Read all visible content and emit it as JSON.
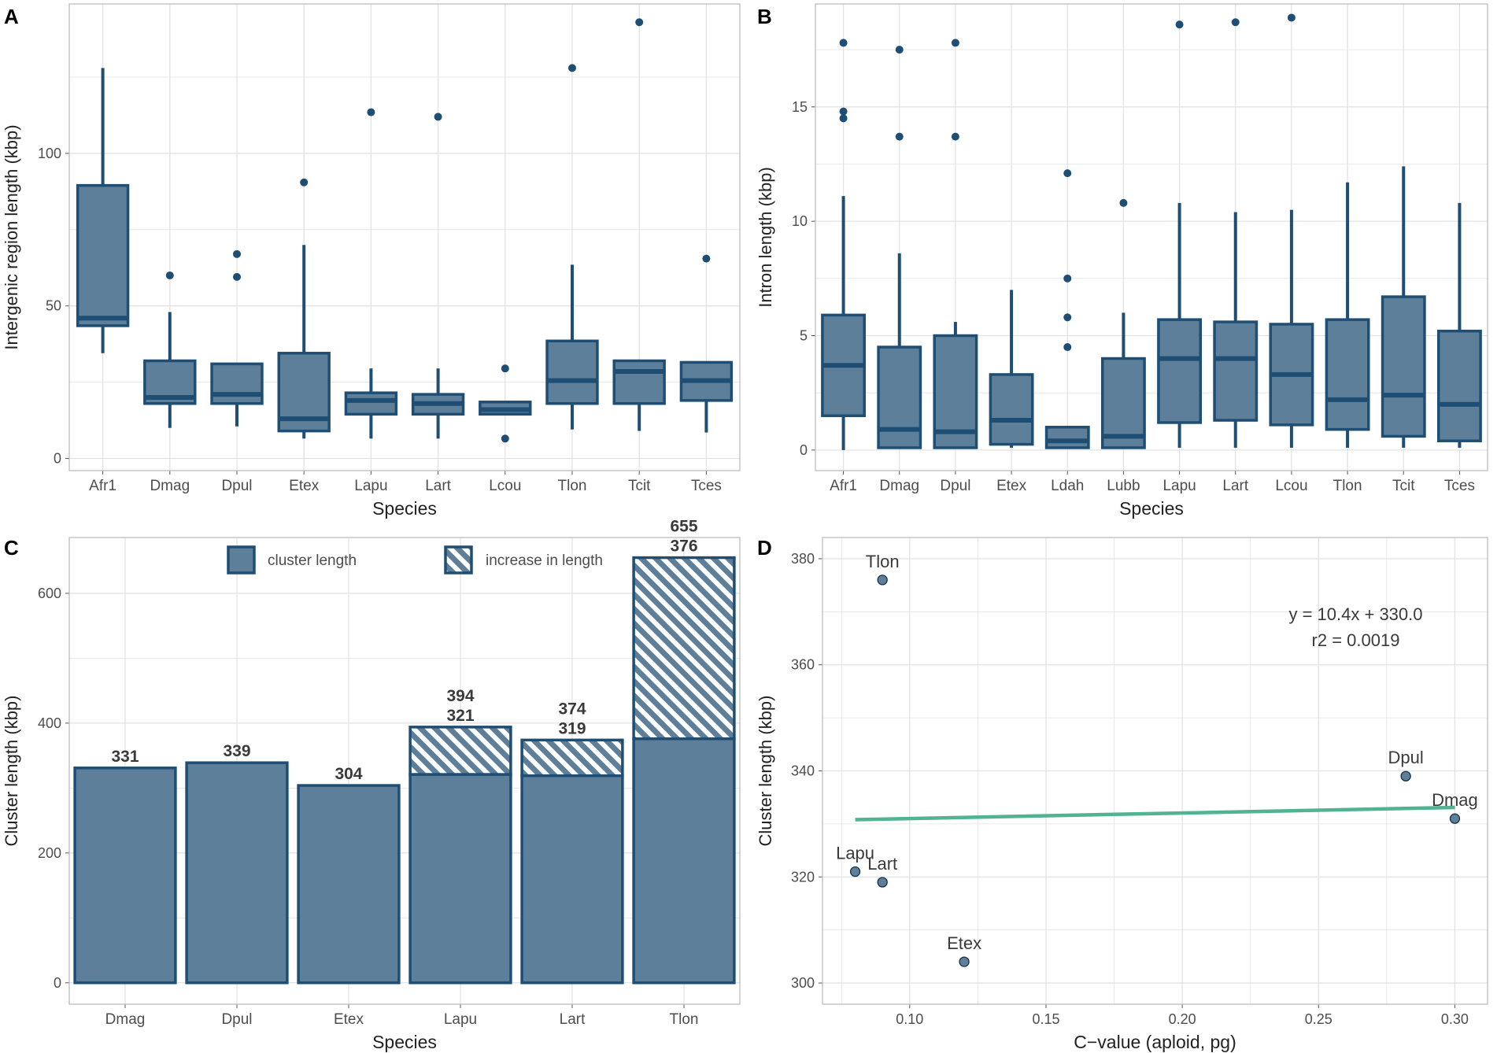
{
  "colors": {
    "box_fill": "#5e7f9a",
    "box_stroke": "#1f4e74",
    "point": "#1f4e74",
    "bar_fill": "#5e7f9a",
    "bar_stroke": "#1f4e74",
    "hatch": "#ffffff",
    "fit_line": "#52b393",
    "scatter_fill": "#5e7f9a",
    "grid": "#e3e3e3",
    "panel_border": "#bdbdbd",
    "text": "#222222",
    "tick_text": "#4d4d4d",
    "label_text": "#3a3a3a"
  },
  "chart_data": [
    {
      "panel": "A",
      "type": "box",
      "xlabel": "Species",
      "ylabel": "Intergenic region length (kbp)",
      "ylim": [
        -4,
        149
      ],
      "yticks": [
        0,
        50,
        100
      ],
      "categories": [
        "Afr1",
        "Dmag",
        "Dpul",
        "Etex",
        "Lapu",
        "Lart",
        "Lcou",
        "Tlon",
        "Tcit",
        "Tces"
      ],
      "boxes": [
        {
          "lw": 34.5,
          "q1": 43.5,
          "med": 46,
          "q3": 89.5,
          "uw": 128,
          "out": []
        },
        {
          "lw": 10,
          "q1": 18,
          "med": 20,
          "q3": 32,
          "uw": 48,
          "out": [
            60
          ]
        },
        {
          "lw": 10.5,
          "q1": 18,
          "med": 21,
          "q3": 31,
          "uw": 31,
          "out": [
            59.5,
            67
          ]
        },
        {
          "lw": 6.5,
          "q1": 9,
          "med": 13,
          "q3": 34.5,
          "uw": 70,
          "out": [
            90.5
          ]
        },
        {
          "lw": 6.5,
          "q1": 14.5,
          "med": 19,
          "q3": 21.5,
          "uw": 29.5,
          "out": [
            113.5
          ]
        },
        {
          "lw": 6.5,
          "q1": 14.5,
          "med": 18,
          "q3": 21,
          "uw": 29.5,
          "out": [
            112
          ]
        },
        {
          "lw": 14.5,
          "q1": 14.5,
          "med": 16,
          "q3": 18.5,
          "uw": 18.5,
          "out": [
            6.5,
            29.5
          ]
        },
        {
          "lw": 9.5,
          "q1": 18,
          "med": 25.5,
          "q3": 38.5,
          "uw": 63.5,
          "out": [
            128
          ]
        },
        {
          "lw": 9,
          "q1": 18,
          "med": 28.5,
          "q3": 32,
          "uw": 32,
          "out": [
            143
          ]
        },
        {
          "lw": 8.5,
          "q1": 19,
          "med": 25.5,
          "q3": 31.5,
          "uw": 31.5,
          "out": [
            65.5
          ]
        }
      ]
    },
    {
      "panel": "B",
      "type": "box",
      "xlabel": "Species",
      "ylabel": "Intron length (kbp)",
      "ylim": [
        -0.9,
        19.5
      ],
      "yticks": [
        0,
        5,
        10,
        15
      ],
      "categories": [
        "Afr1",
        "Dmag",
        "Dpul",
        "Etex",
        "Ldah",
        "Lubb",
        "Lapu",
        "Lart",
        "Lcou",
        "Tlon",
        "Tcit",
        "Tces"
      ],
      "boxes": [
        {
          "lw": 0,
          "q1": 1.5,
          "med": 3.7,
          "q3": 5.9,
          "uw": 11.1,
          "out": [
            14.5,
            14.8,
            17.8
          ]
        },
        {
          "lw": 0.1,
          "q1": 0.1,
          "med": 0.9,
          "q3": 4.5,
          "uw": 8.6,
          "out": [
            13.7,
            17.5
          ]
        },
        {
          "lw": 0.1,
          "q1": 0.1,
          "med": 0.8,
          "q3": 5.0,
          "uw": 5.6,
          "out": [
            13.7,
            17.8
          ]
        },
        {
          "lw": 0.1,
          "q1": 0.25,
          "med": 1.3,
          "q3": 3.3,
          "uw": 7.0,
          "out": []
        },
        {
          "lw": 0.1,
          "q1": 0.1,
          "med": 0.4,
          "q3": 1.0,
          "uw": 1.0,
          "out": [
            4.5,
            5.8,
            7.5,
            12.1
          ]
        },
        {
          "lw": 0.1,
          "q1": 0.1,
          "med": 0.6,
          "q3": 4.0,
          "uw": 6.0,
          "out": [
            10.8
          ]
        },
        {
          "lw": 0.1,
          "q1": 1.2,
          "med": 4.0,
          "q3": 5.7,
          "uw": 10.8,
          "out": [
            18.6
          ]
        },
        {
          "lw": 0.1,
          "q1": 1.3,
          "med": 4.0,
          "q3": 5.6,
          "uw": 10.4,
          "out": [
            18.7
          ]
        },
        {
          "lw": 0.1,
          "q1": 1.1,
          "med": 3.3,
          "q3": 5.5,
          "uw": 10.5,
          "out": [
            18.9
          ]
        },
        {
          "lw": 0.1,
          "q1": 0.9,
          "med": 2.2,
          "q3": 5.7,
          "uw": 11.7,
          "out": []
        },
        {
          "lw": 0.1,
          "q1": 0.6,
          "med": 2.4,
          "q3": 6.7,
          "uw": 12.4,
          "out": []
        },
        {
          "lw": 0.1,
          "q1": 0.4,
          "med": 2.0,
          "q3": 5.2,
          "uw": 10.8,
          "out": []
        }
      ]
    },
    {
      "panel": "C",
      "type": "bar",
      "xlabel": "Species",
      "ylabel": "Cluster length (kbp)",
      "ylim": [
        -33,
        686
      ],
      "yticks": [
        0,
        200,
        400,
        600
      ],
      "categories": [
        "Dmag",
        "Dpul",
        "Etex",
        "Lapu",
        "Lart",
        "Tlon"
      ],
      "series": [
        {
          "name": "cluster length",
          "values": [
            331,
            339,
            304,
            321,
            319,
            376
          ]
        },
        {
          "name": "increase in length",
          "values": [
            0,
            0,
            0,
            73,
            55,
            279
          ]
        }
      ],
      "labels": [
        {
          "lines": [
            "331"
          ]
        },
        {
          "lines": [
            "339"
          ]
        },
        {
          "lines": [
            "304"
          ]
        },
        {
          "lines": [
            "394",
            "321"
          ]
        },
        {
          "lines": [
            "374",
            "319"
          ]
        },
        {
          "lines": [
            "655",
            "376"
          ]
        }
      ],
      "legend": [
        "cluster length",
        "increase in length"
      ],
      "legend_position": "top"
    },
    {
      "panel": "D",
      "type": "scatter",
      "xlabel": "C−value (aploid, pg)",
      "ylabel": "Cluster length (kbp)",
      "xlim": [
        0.068,
        0.312
      ],
      "ylim": [
        296,
        384
      ],
      "xticks": [
        0.1,
        0.15,
        0.2,
        0.25,
        0.3
      ],
      "xtick_labels": [
        "0.10",
        "0.15",
        "0.20",
        "0.25",
        "0.30"
      ],
      "yticks": [
        300,
        320,
        340,
        360,
        380
      ],
      "points": [
        {
          "label": "Tlon",
          "x": 0.09,
          "y": 376
        },
        {
          "label": "Dpul",
          "x": 0.282,
          "y": 339
        },
        {
          "label": "Dmag",
          "x": 0.3,
          "y": 331
        },
        {
          "label": "Lapu",
          "x": 0.08,
          "y": 321
        },
        {
          "label": "Lart",
          "x": 0.09,
          "y": 319
        },
        {
          "label": "Etex",
          "x": 0.12,
          "y": 304
        }
      ],
      "fit": {
        "x": [
          0.08,
          0.3
        ],
        "y": [
          330.8,
          333.1
        ]
      },
      "annotation": [
        "y = 10.4x + 330.0",
        "r2 = 0.0019"
      ]
    }
  ]
}
